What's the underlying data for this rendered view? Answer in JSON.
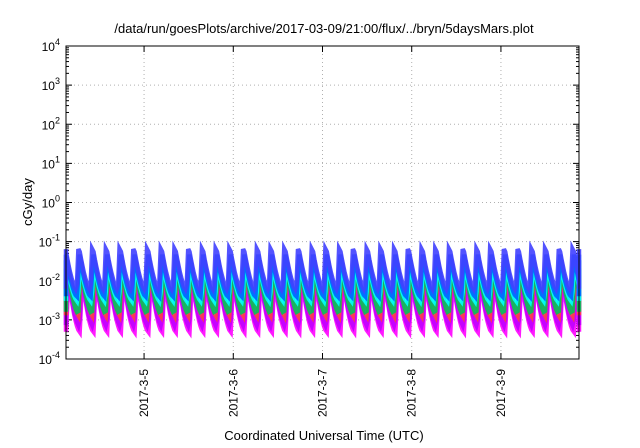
{
  "chart_data": {
    "type": "line",
    "title": "/data/run/goesPlots/archive/2017-03-09/21:00/flux/../bryn/5daysMars.plot",
    "xlabel": "Coordinated Universal Time (UTC)",
    "ylabel": "cGy/day",
    "y_scale": "log",
    "ylim": [
      0.0001,
      10000
    ],
    "xlim": [
      "2017-03-04 03:00",
      "2017-03-09 21:00"
    ],
    "y_ticks": [
      {
        "base": "10",
        "exp": "-4",
        "value": 0.0001
      },
      {
        "base": "10",
        "exp": "-3",
        "value": 0.001
      },
      {
        "base": "10",
        "exp": "-2",
        "value": 0.01
      },
      {
        "base": "10",
        "exp": "-1",
        "value": 0.1
      },
      {
        "base": "10",
        "exp": "0",
        "value": 1
      },
      {
        "base": "10",
        "exp": "1",
        "value": 10
      },
      {
        "base": "10",
        "exp": "2",
        "value": 100
      },
      {
        "base": "10",
        "exp": "3",
        "value": 1000
      },
      {
        "base": "10",
        "exp": "4",
        "value": 10000
      }
    ],
    "x_ticks": [
      {
        "label": "2017-3-5",
        "date": "2017-03-05"
      },
      {
        "label": "2017-3-6",
        "date": "2017-03-06"
      },
      {
        "label": "2017-3-7",
        "date": "2017-03-07"
      },
      {
        "label": "2017-3-8",
        "date": "2017-03-08"
      },
      {
        "label": "2017-3-9",
        "date": "2017-03-09"
      }
    ],
    "grid": true,
    "legend": "none",
    "oscillation": {
      "cycles_per_day": 6.5,
      "peak_approx": 0.08,
      "trough_approx": 0.0006
    },
    "series": [
      {
        "color": "#ff00ff",
        "peak": 0.015,
        "trough": 0.0005
      },
      {
        "color": "#c000ff",
        "peak": 0.02,
        "trough": 0.0007
      },
      {
        "color": "#ff4040",
        "peak": 0.04,
        "trough": 0.0013
      },
      {
        "color": "#00c060",
        "peak": 0.03,
        "trough": 0.0015
      },
      {
        "color": "#00ffff",
        "peak": 0.035,
        "trough": 0.003
      },
      {
        "color": "#0060ff",
        "peak": 0.06,
        "trough": 0.004
      },
      {
        "color": "#4040ff",
        "peak": 0.085,
        "trough": 0.006
      }
    ]
  }
}
